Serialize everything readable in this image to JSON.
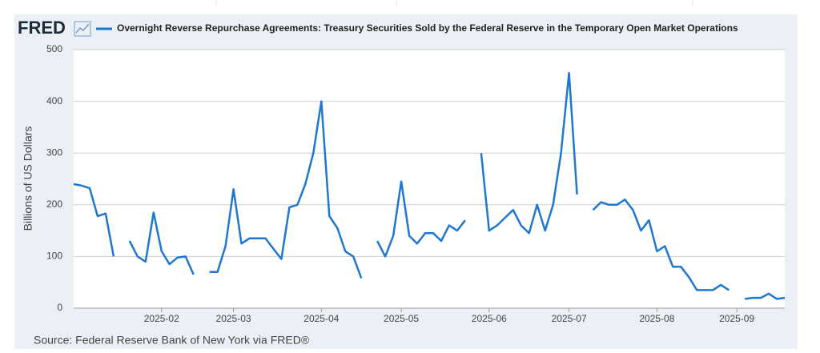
{
  "logo": "FRED",
  "chart_data": {
    "type": "line",
    "title": "Overnight Reverse Repurchase Agreements: Treasury Securities Sold by the Federal Reserve in the Temporary Open Market Operations",
    "y_label": "Billions of US Dollars",
    "source": "Source: Federal Reserve Bank of New York via FRED®",
    "categories": [
      null,
      null,
      null,
      null,
      null,
      null,
      null,
      null,
      null,
      null,
      null,
      "2025-02",
      null,
      null,
      null,
      null,
      null,
      null,
      null,
      null,
      "2025-03",
      null,
      null,
      null,
      null,
      null,
      null,
      null,
      null,
      null,
      null,
      "2025-04",
      null,
      null,
      null,
      null,
      null,
      null,
      null,
      null,
      null,
      "2025-05",
      null,
      null,
      null,
      null,
      null,
      null,
      null,
      null,
      null,
      null,
      "2025-06",
      null,
      null,
      null,
      null,
      null,
      null,
      null,
      null,
      null,
      "2025-07",
      null,
      null,
      null,
      null,
      null,
      null,
      null,
      null,
      null,
      null,
      "2025-08",
      null,
      null,
      null,
      null,
      null,
      null,
      null,
      null,
      null,
      "2025-09",
      null,
      null,
      null,
      null,
      null,
      null
    ],
    "series": [
      {
        "name": "Overnight Reverse Repurchase Agreements: Treasury Securities Sold by the Federal Reserve in the Temporary Open Market Operations",
        "color": "#1f77d0",
        "values": [
          240,
          237,
          232,
          178,
          183,
          100,
          null,
          130,
          100,
          90,
          185,
          110,
          85,
          98,
          100,
          65,
          null,
          70,
          70,
          120,
          230,
          125,
          135,
          135,
          135,
          115,
          95,
          195,
          200,
          240,
          300,
          400,
          178,
          155,
          110,
          100,
          58,
          null,
          130,
          100,
          140,
          245,
          140,
          125,
          145,
          145,
          130,
          160,
          150,
          170,
          null,
          300,
          150,
          160,
          175,
          190,
          160,
          145,
          200,
          150,
          200,
          300,
          455,
          220,
          null,
          190,
          205,
          200,
          200,
          210,
          190,
          150,
          170,
          110,
          120,
          80,
          80,
          60,
          35,
          35,
          35,
          45,
          35,
          null,
          18,
          20,
          20,
          28,
          18,
          20
        ]
      }
    ],
    "ylim": [
      0,
      500
    ],
    "yticks": [
      0,
      100,
      200,
      300,
      400,
      500
    ],
    "grid": true
  }
}
